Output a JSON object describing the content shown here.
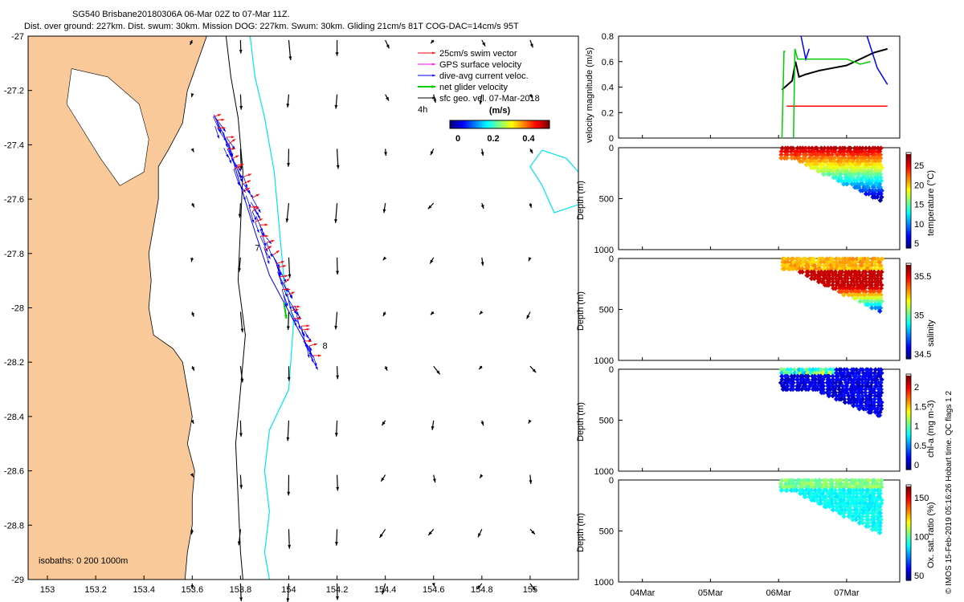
{
  "header": {
    "title": "SG540 Brisbane20180306A 06-Mar 02Z to 07-Mar 11Z.",
    "subtitle": "Dist. over ground: 227km. Dist. swum: 30km. Mission DOG: 227km. Swum: 30km. Gliding 21cm/s 81T COG-DAC=14cm/s 95T"
  },
  "colors": {
    "land": "#f9c999",
    "track_line": "#0000ff",
    "swim_vector": "#ff0000",
    "gps_velocity": "#ff00ff",
    "dac": "#0000ff",
    "net_velocity": "#00cc00",
    "sfc_geo": "#000000",
    "isobath_200": "#000000",
    "isobath_1000": "#00e5ee",
    "speed_black": "#000000"
  },
  "legend": {
    "items": [
      {
        "label": "25cm/s swim vector",
        "color": "#ff0000"
      },
      {
        "label": "GPS surface velocity",
        "color": "#ff00ff"
      },
      {
        "label": "dive-avg current veloc.",
        "color": "#0000ff"
      },
      {
        "label": "net glider velocity",
        "color": "#00cc00"
      },
      {
        "label": "sfc geo. vel. 07-Mar-2018",
        "color": "#000000"
      }
    ],
    "note": "4h",
    "colorbar_title": "(m/s)",
    "colorbar_ticks": [
      "0",
      "0.2",
      "0.4"
    ]
  },
  "map": {
    "xlim": [
      152.92,
      155.2
    ],
    "ylim": [
      -29,
      -27
    ],
    "xticks": [
      "153",
      "153.2",
      "153.4",
      "153.6",
      "153.8",
      "154",
      "154.2",
      "154.4",
      "154.6",
      "154.8",
      "155"
    ],
    "yticks": [
      "-27",
      "-27.2",
      "-27.4",
      "-27.6",
      "-27.8",
      "-28",
      "-28.2",
      "-28.4",
      "-28.6",
      "-28.8",
      "-29"
    ],
    "isobath_label": "isobaths: 0   200  1000m",
    "dive_labels": [
      "7",
      "8"
    ]
  },
  "side_panels": {
    "xlabels": [
      "04Mar",
      "05Mar",
      "06Mar",
      "07Mar"
    ],
    "velocity": {
      "ylabel": "velocity magnitude (m/s)",
      "yticks": [
        "0",
        "0.2",
        "0.4",
        "0.6",
        "0.8"
      ]
    },
    "temperature": {
      "ylabel": "Depth (m)",
      "yticks": [
        "0",
        "500",
        "1000"
      ],
      "cbar_label": "temperature (°C)",
      "cbar_ticks": [
        "5",
        "10",
        "15",
        "20",
        "25"
      ]
    },
    "salinity": {
      "ylabel": "Depth (m)",
      "yticks": [
        "0",
        "500",
        "1000"
      ],
      "cbar_label": "salinity",
      "cbar_ticks": [
        "34.5",
        "35",
        "35.5"
      ]
    },
    "chla": {
      "ylabel": "Depth (m)",
      "yticks": [
        "0",
        "500",
        "1000"
      ],
      "cbar_label": "chl-a (mg m-3)",
      "cbar_ticks": [
        "0",
        "0.5",
        "1",
        "1.5",
        "2"
      ]
    },
    "oxygen": {
      "ylabel": "Depth (m)",
      "yticks": [
        "0",
        "500",
        "1000"
      ],
      "cbar_label": "Ox. sat. ratio (%)",
      "cbar_ticks": [
        "50",
        "100",
        "150"
      ]
    }
  },
  "credit": "© IMOS 15-Feb-2019 05:16:26 Hobart time. QC flags 1  2",
  "chart_data": [
    {
      "type": "map",
      "title": "SG540 Brisbane20180306A 06-Mar 02Z to 07-Mar 11Z.",
      "xlim": [
        152.92,
        155.2
      ],
      "ylim": [
        -29,
        -27
      ],
      "glider_track": {
        "lon": [
          153.69,
          153.75,
          153.8,
          153.86,
          153.92,
          153.98,
          154.04,
          154.1
        ],
        "lat": [
          -27.29,
          -27.4,
          -27.55,
          -27.72,
          -27.88,
          -27.98,
          -28.08,
          -28.18
        ]
      },
      "dive_labels": [
        {
          "label": "7",
          "lon": 153.86,
          "lat": -27.79
        },
        {
          "label": "8",
          "lon": 154.14,
          "lat": -28.15
        }
      ]
    },
    {
      "type": "line",
      "ylabel": "velocity magnitude (m/s)",
      "ylim": [
        0,
        0.8
      ],
      "x_labels": [
        "04Mar",
        "05Mar",
        "06Mar",
        "07Mar"
      ],
      "series": [
        {
          "color": "black",
          "x": [
            6.05,
            6.2,
            6.25,
            6.3,
            6.4,
            6.6,
            6.8,
            7.0,
            7.2,
            7.4,
            7.6
          ],
          "values": [
            0.38,
            0.45,
            0.6,
            0.48,
            0.5,
            0.53,
            0.55,
            0.57,
            0.62,
            0.67,
            0.7
          ]
        },
        {
          "color": "red",
          "x": [
            6.12,
            7.6
          ],
          "values": [
            0.25,
            0.25
          ]
        }
      ]
    },
    {
      "type": "scatter",
      "ylabel": "Depth (m)",
      "cbar": "temperature (°C)",
      "ylim": [
        1000,
        0
      ],
      "value_range": [
        5,
        28
      ]
    },
    {
      "type": "scatter",
      "ylabel": "Depth (m)",
      "cbar": "salinity",
      "ylim": [
        1000,
        0
      ],
      "value_range": [
        34.3,
        35.8
      ]
    },
    {
      "type": "scatter",
      "ylabel": "Depth (m)",
      "cbar": "chl-a (mg m-3)",
      "ylim": [
        1000,
        0
      ],
      "value_range": [
        0,
        2
      ]
    },
    {
      "type": "scatter",
      "ylabel": "Depth (m)",
      "cbar": "Ox. sat. ratio (%)",
      "ylim": [
        1000,
        0
      ],
      "value_range": [
        30,
        170
      ]
    }
  ]
}
